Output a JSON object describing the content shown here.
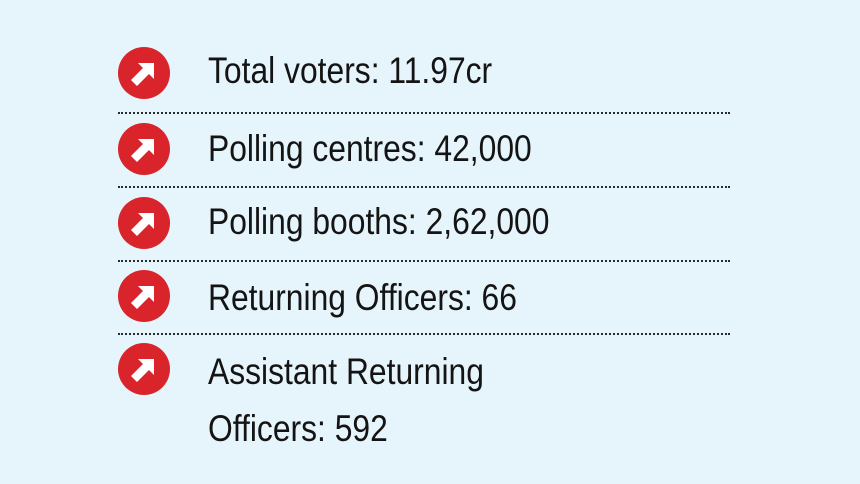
{
  "stats": [
    {
      "icon": "arrow-up-right-icon",
      "label": "Total voters: 11.97cr"
    },
    {
      "icon": "arrow-up-right-icon",
      "label": "Polling centres: 42,000"
    },
    {
      "icon": "arrow-up-right-icon",
      "label": "Polling booths: 2,62,000"
    },
    {
      "icon": "arrow-up-right-icon",
      "label": "Returning Officers: 66"
    },
    {
      "icon": "arrow-up-right-icon",
      "label_line1": "Assistant Returning",
      "label_line2": "Officers: 592"
    }
  ],
  "colors": {
    "background": "#e6f4fb",
    "accent": "#d9242b",
    "text": "#141414"
  }
}
